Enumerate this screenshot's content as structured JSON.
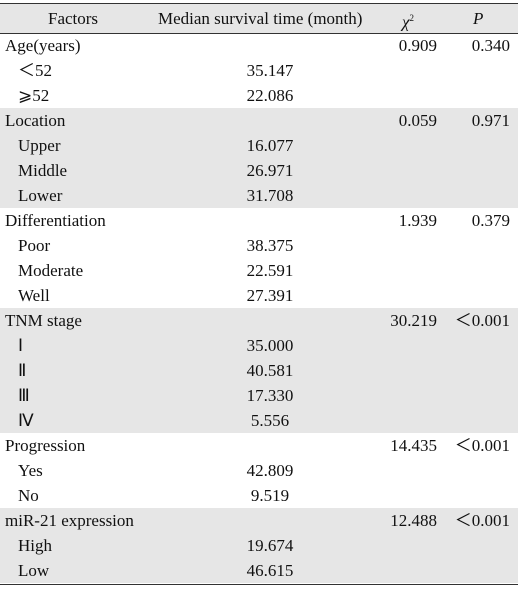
{
  "header": {
    "factors": "Factors",
    "median": "Median survival time (month)",
    "chi": "χ",
    "chi_sup": "2",
    "p": "P"
  },
  "groups": [
    {
      "label": "Age(years)",
      "chi": "0.909",
      "p": "0.340",
      "rows": [
        {
          "label": "＜52",
          "median": "35.147"
        },
        {
          "label": "⩾52",
          "median": "22.086"
        }
      ]
    },
    {
      "label": "Location",
      "chi": "0.059",
      "p": "0.971",
      "rows": [
        {
          "label": "Upper",
          "median": "16.077"
        },
        {
          "label": "Middle",
          "median": "26.971"
        },
        {
          "label": "Lower",
          "median": "31.708"
        }
      ]
    },
    {
      "label": "Differentiation",
      "chi": "1.939",
      "p": "0.379",
      "rows": [
        {
          "label": "Poor",
          "median": "38.375"
        },
        {
          "label": "Moderate",
          "median": "22.591"
        },
        {
          "label": "Well",
          "median": "27.391"
        }
      ]
    },
    {
      "label": "TNM stage",
      "chi": "30.219",
      "p": "＜0.001",
      "rows": [
        {
          "label": "Ⅰ",
          "median": "35.000"
        },
        {
          "label": "Ⅱ",
          "median": "40.581"
        },
        {
          "label": "Ⅲ",
          "median": "17.330"
        },
        {
          "label": "Ⅳ",
          "median": "5.556"
        }
      ]
    },
    {
      "label": "Progression",
      "chi": "14.435",
      "p": "＜0.001",
      "rows": [
        {
          "label": "Yes",
          "median": "42.809"
        },
        {
          "label": "No",
          "median": "9.519"
        }
      ]
    },
    {
      "label": "miR-21 expression",
      "chi": "12.488",
      "p": "＜0.001",
      "rows": [
        {
          "label": "High",
          "median": "19.674"
        },
        {
          "label": "Low",
          "median": "46.615"
        }
      ]
    }
  ]
}
